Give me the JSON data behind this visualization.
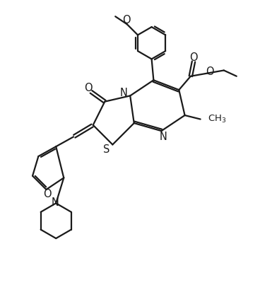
{
  "bg_color": "#ffffff",
  "line_color": "#1a1a1a",
  "lw": 1.6,
  "figsize": [
    3.85,
    4.2
  ],
  "dpi": 100,
  "xlim": [
    -1.5,
    11.5
  ],
  "ylim": [
    -3.5,
    11.5
  ]
}
